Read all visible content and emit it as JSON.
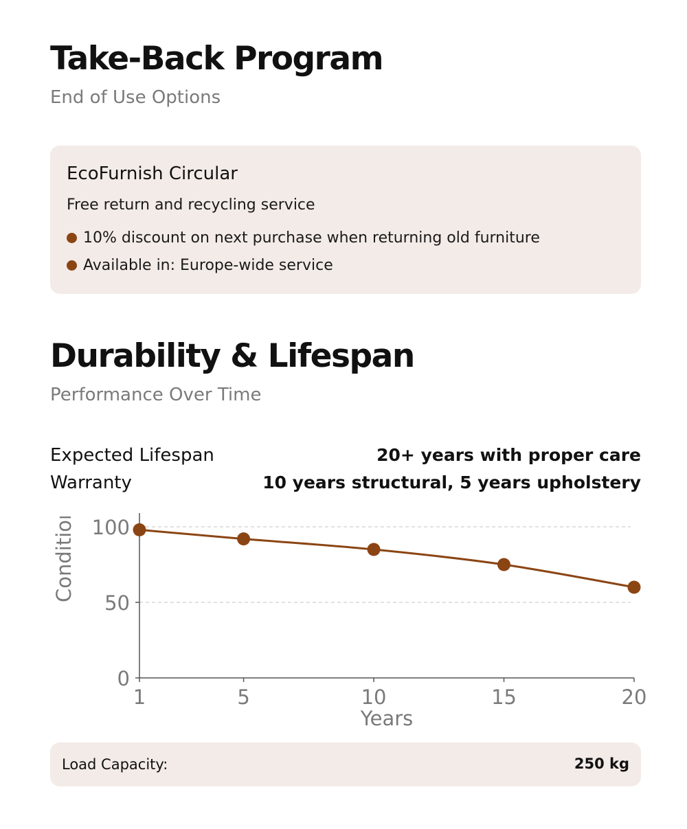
{
  "take_back": {
    "title": "Take-Back Program",
    "subtitle": "End of Use Options",
    "program_name": "EcoFurnish Circular",
    "description": "Free return and recycling service",
    "bullets": [
      "10% discount on next purchase when returning old furniture",
      "Available in: Europe-wide service"
    ]
  },
  "durability": {
    "title": "Durability & Lifespan",
    "subtitle": "Performance Over Time",
    "specs": [
      {
        "label": "Expected Lifespan",
        "value": "20+ years with proper care"
      },
      {
        "label": "Warranty",
        "value": "10 years structural, 5 years upholstery"
      }
    ]
  },
  "load": {
    "label": "Load Capacity:",
    "value": "250 kg"
  },
  "colors": {
    "accent": "#8b4513",
    "card_bg": "#f3ebe7",
    "muted_text": "#7a7a7a"
  },
  "chart_data": {
    "type": "line",
    "x": [
      1,
      5,
      10,
      15,
      20
    ],
    "series": [
      {
        "values": [
          98,
          92,
          85,
          75,
          60
        ]
      }
    ],
    "xlabel": "Years",
    "ylabel": "Condition",
    "xticks": [
      "1",
      "5",
      "10",
      "15",
      "20"
    ],
    "yticks": [
      "0",
      "50",
      "100"
    ],
    "xlim": [
      1,
      20
    ],
    "ylim": [
      0,
      100
    ],
    "grid": "horizontal dashed"
  }
}
